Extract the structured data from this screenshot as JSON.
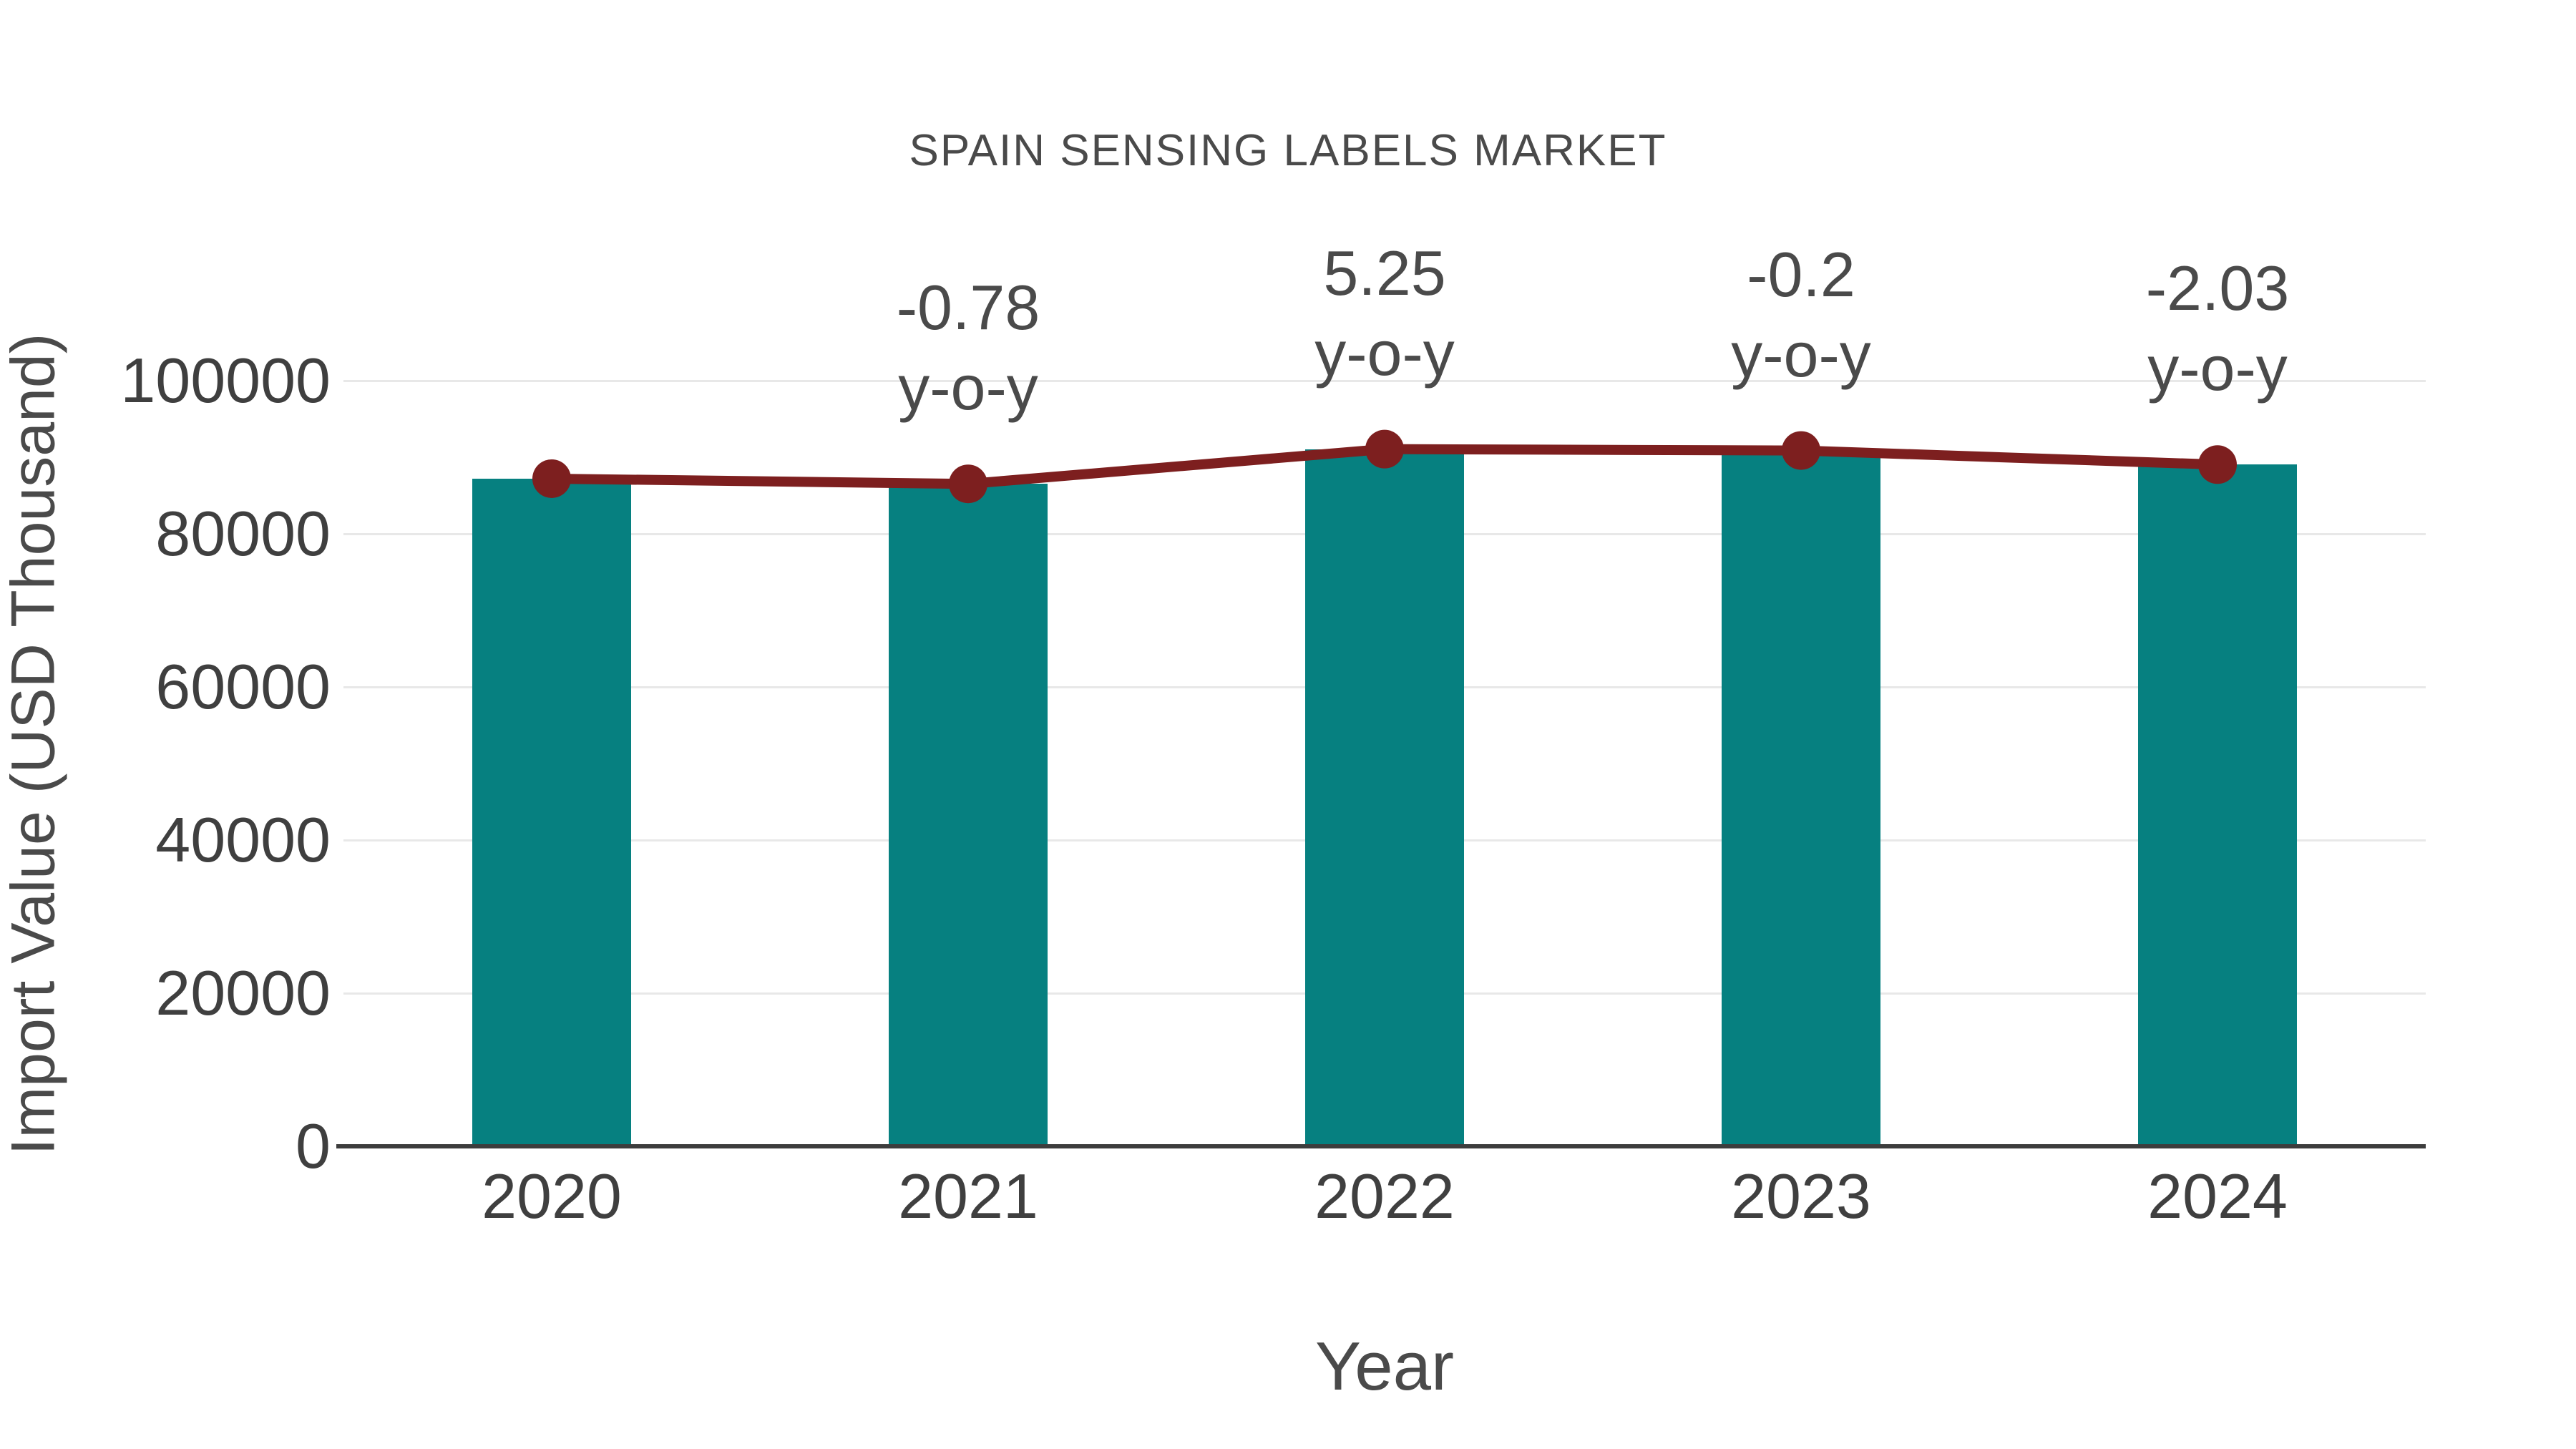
{
  "title": "SPAIN SENSING LABELS MARKET",
  "chart_data": {
    "type": "bar",
    "title": "SPAIN SENSING LABELS MARKET",
    "xlabel": "Year",
    "ylabel": "Import Value (USD Thousand)",
    "categories": [
      "2020",
      "2021",
      "2022",
      "2023",
      "2024"
    ],
    "series": [
      {
        "name": "Import Value bars",
        "type": "bar",
        "color": "#068080",
        "values": [
          87200,
          86520,
          91060,
          90880,
          89040
        ]
      },
      {
        "name": "Import Value trend line",
        "type": "line",
        "color": "#7d1f1f",
        "values": [
          87200,
          86520,
          91060,
          90880,
          89040
        ]
      }
    ],
    "yoy_annotations": [
      {
        "category": "2021",
        "value": "-0.78",
        "suffix": "y-o-y"
      },
      {
        "category": "2022",
        "value": "5.25",
        "suffix": "y-o-y"
      },
      {
        "category": "2023",
        "value": "-0.2",
        "suffix": "y-o-y"
      },
      {
        "category": "2024",
        "value": "-2.03",
        "suffix": "y-o-y"
      }
    ],
    "yticks": [
      0,
      20000,
      40000,
      60000,
      80000,
      100000
    ],
    "ylim": [
      0,
      100000
    ],
    "grid": "horizontal",
    "legend_position": "none"
  },
  "colors": {
    "bar": "#068080",
    "line": "#7d1f1f",
    "grid": "#e8e8e8",
    "axis": "#3d3d3d",
    "tick_text": "#3f3f3f",
    "title_text": "#4a4a4a",
    "background": "#ffffff"
  }
}
